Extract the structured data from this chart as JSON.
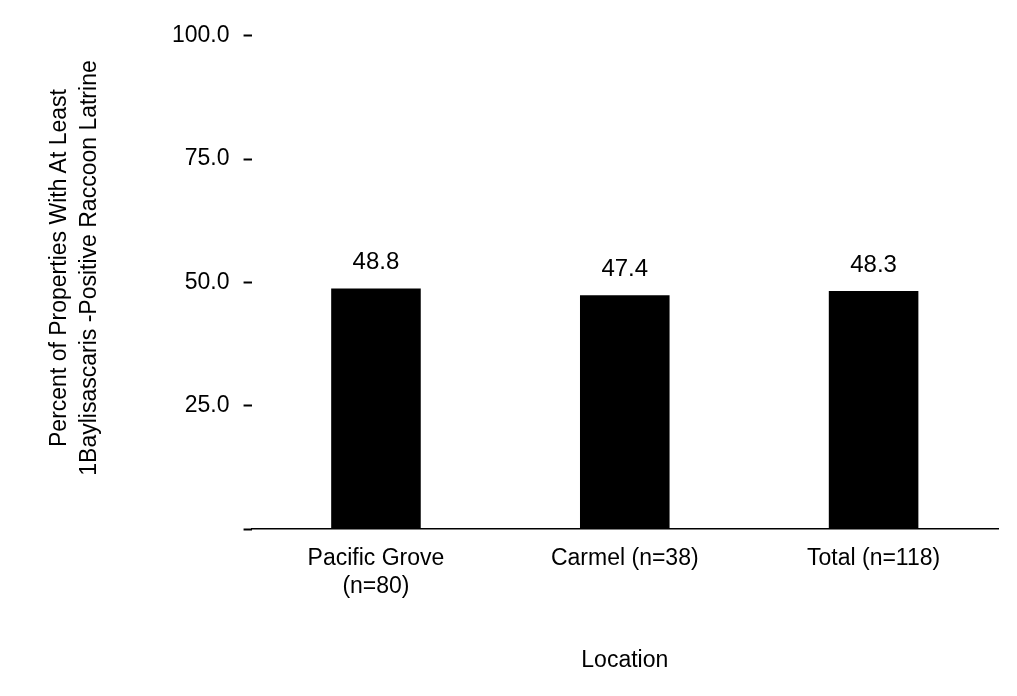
{
  "chart_data": {
    "type": "bar",
    "ylabel": "Percent of Properties With At Least 1Baylisascaris -Positive Raccoon Latrine",
    "xlabel": "Location",
    "categories": [
      "Pacific Grove (n=80)",
      "Carmel (n=38)",
      "Total (n=118)"
    ],
    "values": [
      48.8,
      47.4,
      48.3
    ],
    "color": "#000000",
    "ylim": [
      0,
      100
    ],
    "yticks": [
      {
        "value": 0,
        "label": null
      },
      {
        "value": 25,
        "label": "25.0"
      },
      {
        "value": 50,
        "label": "50.0"
      },
      {
        "value": 75,
        "label": "75.0"
      },
      {
        "value": 100,
        "label": "100.0"
      }
    ],
    "data_labels": true,
    "grid": false,
    "legend": false
  }
}
